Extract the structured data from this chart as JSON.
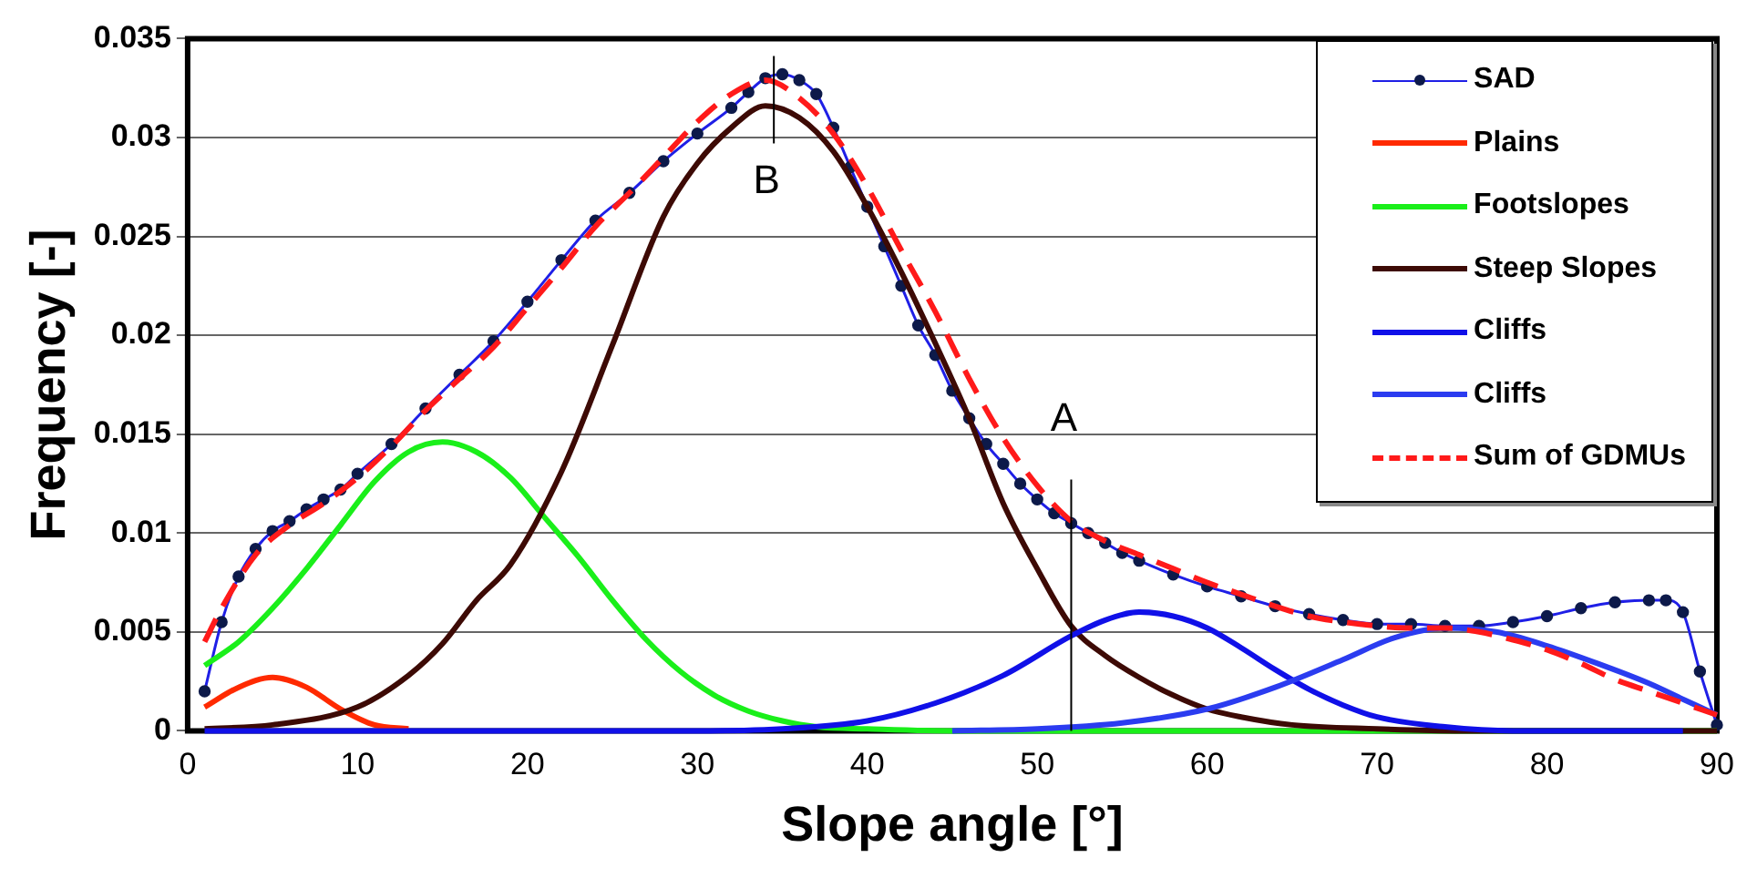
{
  "chart_data": {
    "type": "line",
    "xlabel": "Slope angle [°]",
    "ylabel": "Frequency [-]",
    "xlim": [
      0,
      90
    ],
    "xticks": [
      0,
      10,
      20,
      30,
      40,
      50,
      60,
      70,
      80,
      90
    ],
    "ylim": [
      0,
      0.035
    ],
    "yticks": [
      0,
      0.005,
      0.01,
      0.015,
      0.02,
      0.025,
      0.03,
      0.035
    ],
    "grid": "y",
    "legend": "top right",
    "series": [
      {
        "name": "SAD",
        "color": "#1f1fe6",
        "marker": "circle",
        "line_style": "solid",
        "x": [
          1,
          2,
          3,
          4,
          5,
          6,
          7,
          8,
          9,
          10,
          12,
          14,
          16,
          18,
          20,
          22,
          24,
          26,
          28,
          30,
          32,
          33,
          34,
          35,
          36,
          37,
          38,
          39,
          40,
          41,
          42,
          43,
          44,
          45,
          46,
          47,
          48,
          49,
          50,
          51,
          52,
          53,
          54,
          55,
          56,
          58,
          60,
          62,
          64,
          66,
          68,
          70,
          72,
          74,
          76,
          78,
          80,
          82,
          84,
          86,
          87,
          88,
          89,
          90
        ],
        "values": [
          0.002,
          0.0055,
          0.0078,
          0.0092,
          0.0101,
          0.0106,
          0.0112,
          0.0117,
          0.0122,
          0.013,
          0.0145,
          0.0163,
          0.018,
          0.0197,
          0.0217,
          0.0238,
          0.0258,
          0.0272,
          0.0288,
          0.0302,
          0.0315,
          0.0323,
          0.033,
          0.0332,
          0.0329,
          0.0322,
          0.0305,
          0.0285,
          0.0265,
          0.0245,
          0.0225,
          0.0205,
          0.019,
          0.0172,
          0.0158,
          0.0145,
          0.0135,
          0.0125,
          0.0117,
          0.011,
          0.0105,
          0.01,
          0.0095,
          0.009,
          0.0086,
          0.0079,
          0.0073,
          0.0068,
          0.0063,
          0.0059,
          0.0056,
          0.0054,
          0.0054,
          0.0053,
          0.0053,
          0.0055,
          0.0058,
          0.0062,
          0.0065,
          0.0066,
          0.0066,
          0.006,
          0.003,
          0.0003
        ]
      },
      {
        "name": "Plains",
        "color": "#ff2a00",
        "line_style": "solid",
        "x": [
          1,
          3,
          5,
          7,
          9,
          11,
          13
        ],
        "values": [
          0.0012,
          0.0022,
          0.0027,
          0.0022,
          0.0011,
          0.0003,
          0.0001
        ]
      },
      {
        "name": "Footslopes",
        "color": "#1aef1a",
        "line_style": "solid",
        "x": [
          1,
          3,
          5,
          7,
          9,
          11,
          13,
          15,
          17,
          19,
          21,
          23,
          25,
          27,
          29,
          31,
          33,
          35,
          37,
          40,
          45,
          90
        ],
        "values": [
          0.0033,
          0.0045,
          0.0062,
          0.0082,
          0.0104,
          0.0126,
          0.0141,
          0.0146,
          0.0141,
          0.0128,
          0.0108,
          0.0088,
          0.0066,
          0.0046,
          0.003,
          0.0018,
          0.001,
          0.0005,
          0.0002,
          0.0001,
          0,
          0
        ]
      },
      {
        "name": "Steep Slopes",
        "color": "#3d0a05",
        "line_style": "solid",
        "x": [
          1,
          5,
          10,
          13,
          15,
          17,
          19,
          22,
          25,
          28,
          30,
          32,
          34,
          36,
          38,
          40,
          42,
          44,
          46,
          48,
          50,
          52,
          54,
          56,
          58,
          60,
          62,
          65,
          70,
          75,
          90
        ],
        "values": [
          0.0001,
          0.0003,
          0.0012,
          0.0028,
          0.0044,
          0.0066,
          0.0084,
          0.0131,
          0.0195,
          0.026,
          0.0287,
          0.0305,
          0.0316,
          0.031,
          0.0293,
          0.0265,
          0.0232,
          0.0196,
          0.0158,
          0.0115,
          0.0082,
          0.0053,
          0.0038,
          0.0027,
          0.0018,
          0.0011,
          0.0007,
          0.0003,
          0.0001,
          0,
          0
        ]
      },
      {
        "name": "Cliffs",
        "color": "#1010e8",
        "line_style": "solid",
        "x": [
          1,
          30,
          35,
          40,
          44,
          48,
          52,
          54,
          56,
          58,
          60,
          62,
          64,
          66,
          68,
          70,
          74,
          78,
          88
        ],
        "values": [
          0,
          0,
          0.0001,
          0.0005,
          0.0014,
          0.0028,
          0.0048,
          0.0056,
          0.006,
          0.0058,
          0.0052,
          0.0042,
          0.0031,
          0.0021,
          0.0013,
          0.0007,
          0.0002,
          0,
          0
        ]
      },
      {
        "name": "Cliffs",
        "color": "#2b3cf0",
        "line_style": "solid",
        "x": [
          45,
          50,
          55,
          60,
          64,
          68,
          71,
          74,
          77,
          80,
          83,
          86,
          88,
          90
        ],
        "values": [
          0,
          0.0001,
          0.0004,
          0.0011,
          0.0022,
          0.0036,
          0.0047,
          0.0052,
          0.005,
          0.0043,
          0.0034,
          0.0024,
          0.0016,
          0.0008
        ]
      },
      {
        "name": "Sum of GDMUs",
        "color": "#ff1a1a",
        "line_style": "dashed",
        "x": [
          1,
          2,
          4,
          6,
          8,
          10,
          12,
          14,
          16,
          18,
          20,
          22,
          24,
          26,
          28,
          30,
          32,
          34,
          36,
          38,
          40,
          42,
          44,
          46,
          48,
          50,
          52,
          54,
          56,
          58,
          60,
          62,
          64,
          66,
          68,
          70,
          72,
          74,
          76,
          78,
          80,
          82,
          84,
          86,
          88,
          90
        ],
        "values": [
          0.0045,
          0.0062,
          0.0089,
          0.0104,
          0.0115,
          0.0128,
          0.0144,
          0.0162,
          0.0178,
          0.0194,
          0.0214,
          0.0234,
          0.0255,
          0.0272,
          0.029,
          0.0308,
          0.0322,
          0.0329,
          0.032,
          0.0302,
          0.0275,
          0.0243,
          0.0212,
          0.0178,
          0.0148,
          0.0124,
          0.0106,
          0.0096,
          0.0089,
          0.0082,
          0.0075,
          0.0069,
          0.0063,
          0.0058,
          0.0055,
          0.0053,
          0.0052,
          0.0052,
          0.005,
          0.0046,
          0.0041,
          0.0034,
          0.0026,
          0.002,
          0.0014,
          0.0008
        ]
      }
    ],
    "annotations": [
      {
        "text": "B",
        "x": 34.5,
        "y": 0.0332
      },
      {
        "text": "A",
        "x": 52,
        "y": 0.0105
      }
    ]
  }
}
